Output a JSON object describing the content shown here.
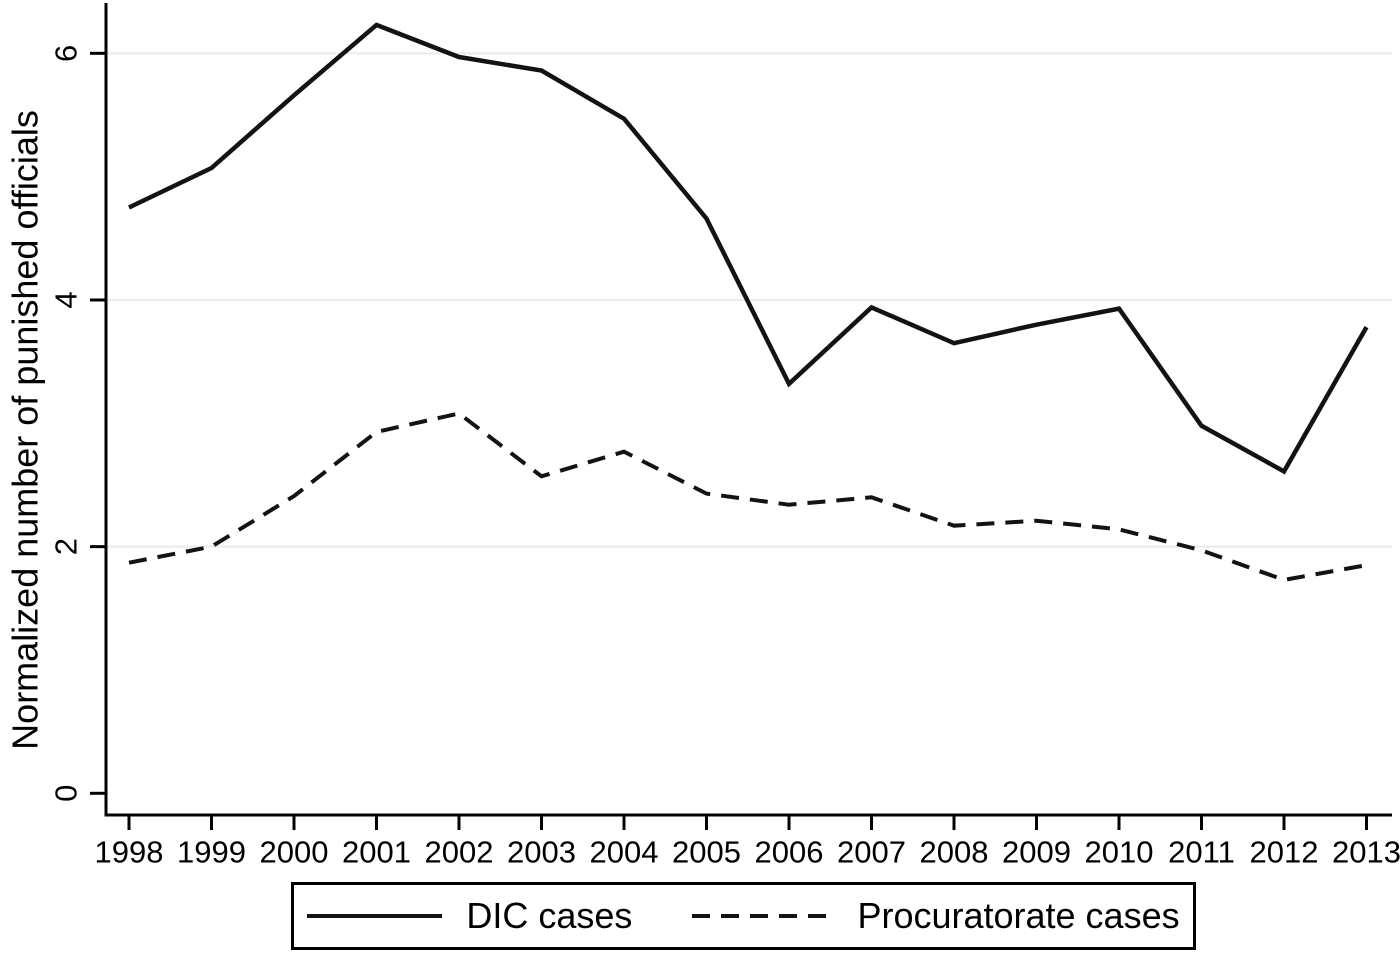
{
  "chart_data": {
    "type": "line",
    "title": "",
    "xlabel": "",
    "ylabel": "Normalized number of punished officials",
    "x": [
      1998,
      1999,
      2000,
      2001,
      2002,
      2003,
      2004,
      2005,
      2006,
      2007,
      2008,
      2009,
      2010,
      2011,
      2012,
      2013
    ],
    "x_tick_labels": [
      "1998",
      "1999",
      "2000",
      "2001",
      "2002",
      "2003",
      "2004",
      "2005",
      "2006",
      "2007",
      "2008",
      "2009",
      "2010",
      "2011",
      "2012",
      "2013"
    ],
    "yticks": [
      0,
      2,
      4,
      6
    ],
    "ytick_labels": [
      "0",
      "2",
      "4",
      "6"
    ],
    "ylim": [
      0,
      6.6
    ],
    "xlim": [
      1997.7,
      2013.3
    ],
    "grid": "light horizontal gridlines at y = 2, 4, 6",
    "legend_position": "bottom, boxed, horizontal",
    "series": [
      {
        "name": "DIC cases",
        "line_style": "solid",
        "color": "#131313",
        "values": [
          4.75,
          5.07,
          5.66,
          6.23,
          5.97,
          5.86,
          5.47,
          4.66,
          3.32,
          3.94,
          3.65,
          3.8,
          3.93,
          2.98,
          2.61,
          3.78
        ]
      },
      {
        "name": "Procuratorate cases",
        "line_style": "dashed",
        "color": "#131313",
        "values": [
          1.87,
          2.0,
          2.41,
          2.93,
          3.08,
          2.57,
          2.77,
          2.43,
          2.34,
          2.4,
          2.17,
          2.21,
          2.14,
          1.97,
          1.73,
          1.85
        ]
      }
    ],
    "colors": {
      "axis": "#000000",
      "grid": "#ebebeb",
      "text": "#000000",
      "background": "#ffffff"
    }
  }
}
